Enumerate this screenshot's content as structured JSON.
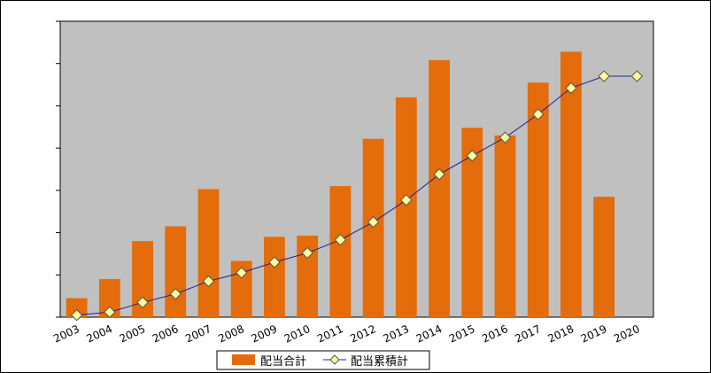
{
  "chart_data": {
    "type": "bar",
    "categories": [
      "2003",
      "2004",
      "2005",
      "2006",
      "2007",
      "2008",
      "2009",
      "2010",
      "2011",
      "2012",
      "2013",
      "2014",
      "2015",
      "2016",
      "2017",
      "2018",
      "2019",
      "2020"
    ],
    "series": [
      {
        "name": "配当合計",
        "type": "bar",
        "color": "#e46c0a",
        "values": [
          0.45,
          0.9,
          1.8,
          2.15,
          3.03,
          1.33,
          1.9,
          1.93,
          3.1,
          4.22,
          5.2,
          6.08,
          4.48,
          4.3,
          5.55,
          6.28,
          2.85,
          null
        ]
      },
      {
        "name": "配当累積計",
        "type": "line",
        "color": "#1f1f8f",
        "marker_color": "#ffff99",
        "values": [
          0.05,
          0.12,
          0.35,
          0.55,
          0.85,
          1.05,
          1.3,
          1.52,
          1.83,
          2.25,
          2.77,
          3.38,
          3.82,
          4.25,
          4.8,
          5.42,
          5.7,
          5.7
        ]
      }
    ],
    "ylim": [
      0,
      7
    ],
    "yticks_shown": false,
    "grid": false,
    "plot_background": "#c0c0c0",
    "legend_position": "bottom"
  }
}
